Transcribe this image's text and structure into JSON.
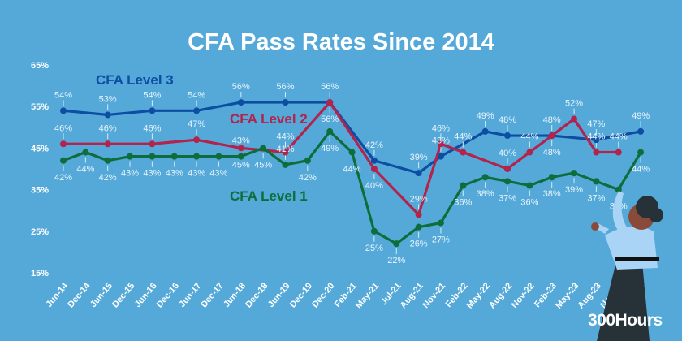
{
  "chart_data": {
    "type": "line",
    "title": "CFA Pass Rates Since 2014",
    "xlabel": "",
    "ylabel": "",
    "ylim": [
      15,
      65
    ],
    "yticks": [
      "15%",
      "25%",
      "35%",
      "45%",
      "55%",
      "65%"
    ],
    "ytick_values": [
      15,
      25,
      35,
      45,
      55,
      65
    ],
    "grid": false,
    "categories": [
      "Jun-14",
      "Dec-14",
      "Jun-15",
      "Dec-15",
      "Jun-16",
      "Dec-16",
      "Jun-17",
      "Dec-17",
      "Jun-18",
      "Dec-18",
      "Jun-19",
      "Dec-19",
      "Dec-20",
      "Feb-21",
      "May-21",
      "Jul-21",
      "Aug-21",
      "Nov-21",
      "Feb-22",
      "May-22",
      "Aug-22",
      "Nov-22",
      "Feb-23",
      "May-23",
      "Aug-23",
      "Nov-23",
      "Feb-24"
    ],
    "series": [
      {
        "name": "CFA Level 3",
        "color": "#0d4ea3",
        "label_pos": "above",
        "values": [
          54,
          null,
          53,
          null,
          54,
          null,
          54,
          null,
          56,
          null,
          56,
          null,
          56,
          null,
          42,
          null,
          39,
          43,
          null,
          49,
          48,
          null,
          48,
          null,
          47,
          null,
          49
        ]
      },
      {
        "name": "CFA Level 2",
        "color": "#b3234b",
        "label_pos": "above",
        "values": [
          46,
          null,
          46,
          null,
          46,
          null,
          47,
          null,
          45,
          null,
          44,
          null,
          56,
          null,
          40,
          null,
          29,
          46,
          44,
          null,
          40,
          44,
          48,
          52,
          44,
          44,
          null
        ]
      },
      {
        "name": "CFA Level 1",
        "color": "#0e6d3b",
        "label_pos": "below",
        "values": [
          42,
          44,
          42,
          43,
          43,
          43,
          43,
          43,
          43,
          45,
          41,
          42,
          49,
          44,
          25,
          22,
          26,
          27,
          36,
          38,
          37,
          36,
          38,
          39,
          37,
          35,
          44
        ]
      }
    ]
  },
  "brand": "300Hours"
}
